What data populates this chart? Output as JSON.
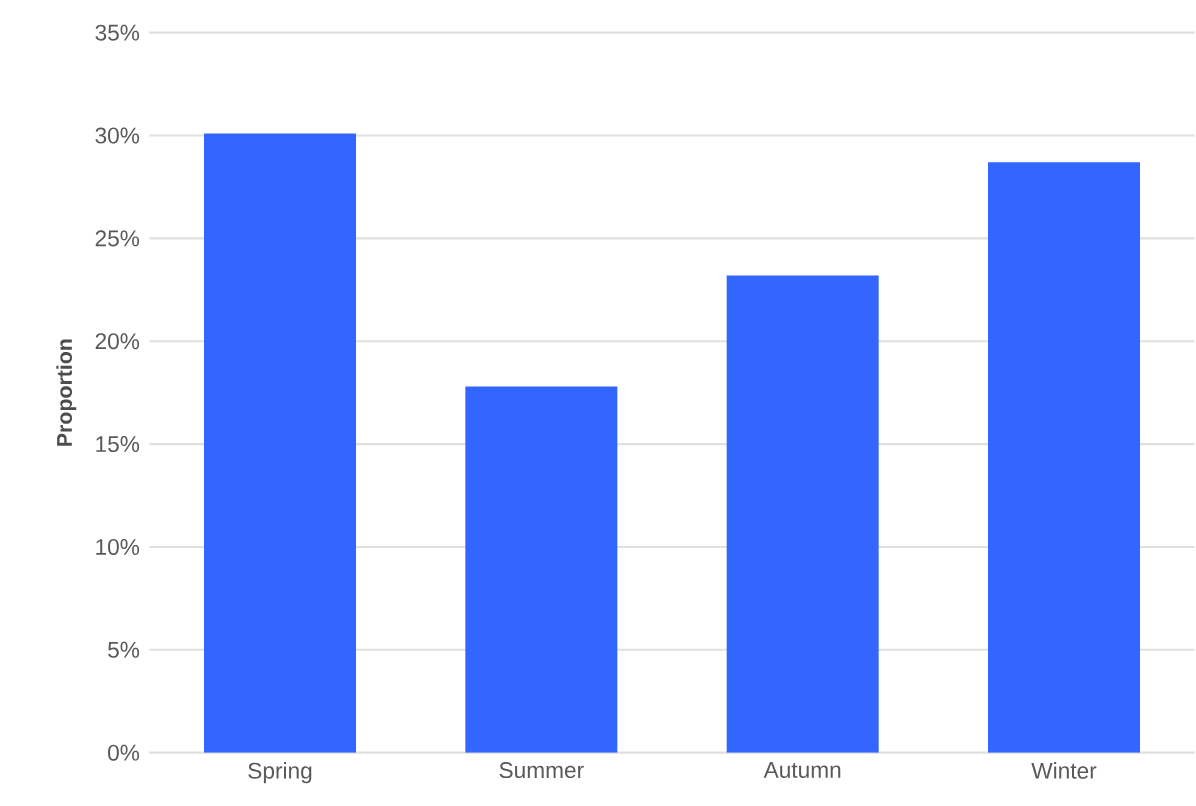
{
  "chart_data": {
    "type": "bar",
    "ylabel": "Proportion",
    "categories": [
      "Spring",
      "Summer",
      "Autumn",
      "Winter"
    ],
    "values": [
      30.1,
      17.8,
      23.2,
      28.7
    ],
    "color": "#3366ff",
    "ylim": [
      0,
      35
    ],
    "yticks": [
      {
        "value": 0,
        "label": "0%"
      },
      {
        "value": 5,
        "label": "5%"
      },
      {
        "value": 10,
        "label": "10%"
      },
      {
        "value": 15,
        "label": "15%"
      },
      {
        "value": 20,
        "label": "20%"
      },
      {
        "value": 25,
        "label": "25%"
      },
      {
        "value": 30,
        "label": "30%"
      },
      {
        "value": 35,
        "label": "35%"
      }
    ],
    "grid": "y"
  }
}
